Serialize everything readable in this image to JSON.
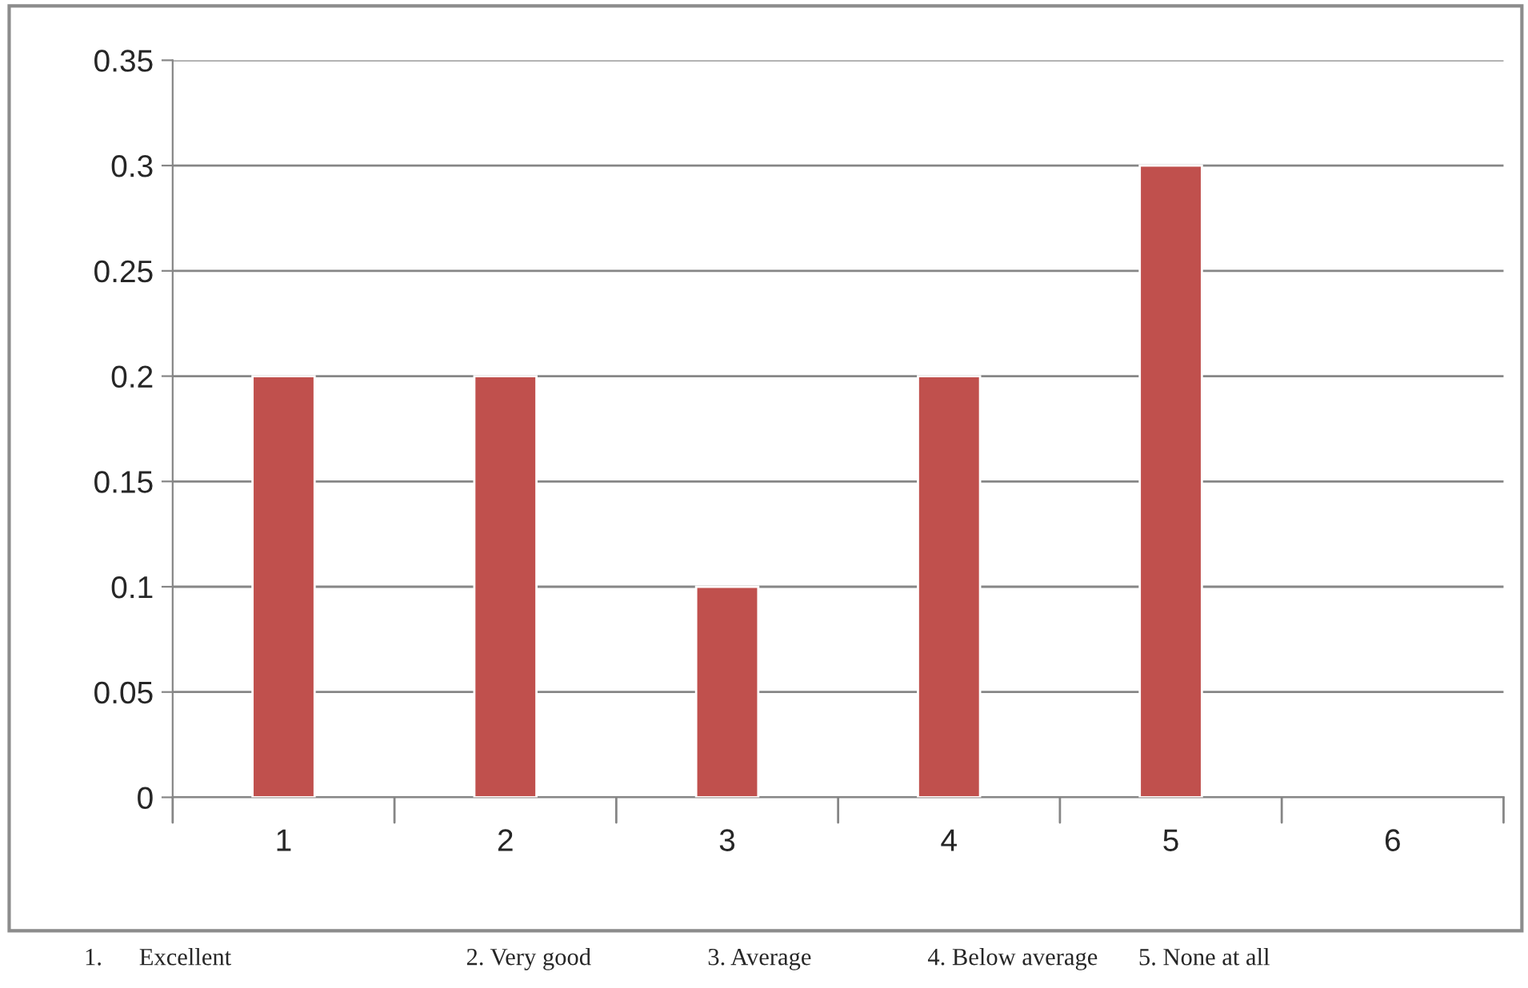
{
  "chart_data": {
    "type": "bar",
    "categories": [
      "1",
      "2",
      "3",
      "4",
      "5",
      "6"
    ],
    "values": [
      0.2,
      0.2,
      0.1,
      0.2,
      0.3,
      null
    ],
    "color": "#c0504d",
    "ylim": [
      0,
      0.35
    ],
    "yticks": [
      {
        "value": 0,
        "label": "0"
      },
      0.05,
      0.1,
      0.15,
      0.2,
      0.25,
      0.3,
      0.35
    ],
    "grid": "y",
    "legend": false,
    "annotations": [
      "1.      Excellent",
      "2. Very good",
      "3. Average",
      "4. Below average",
      "5. None at all"
    ]
  }
}
